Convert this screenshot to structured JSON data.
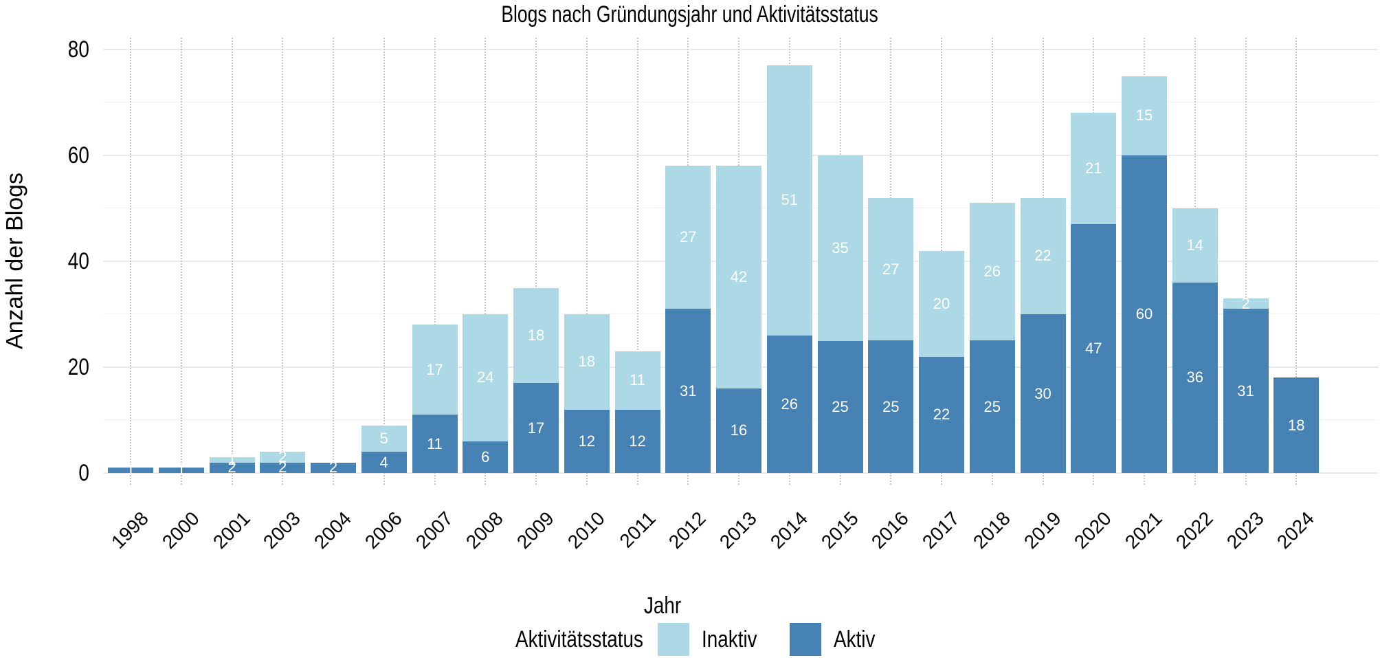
{
  "chart_data": {
    "type": "bar",
    "stacked": true,
    "title": "Blogs nach Gründungsjahr und Aktivitätsstatus",
    "xlabel": "Jahr",
    "ylabel": "Anzahl der Blogs",
    "ylim": [
      0,
      80
    ],
    "yticks": [
      0,
      20,
      40,
      60,
      80
    ],
    "grid": true,
    "legend": {
      "title": "Aktivitätsstatus",
      "position": "bottom",
      "entries": [
        "Inaktiv",
        "Aktiv"
      ]
    },
    "categories": [
      "1998",
      "2000",
      "2001",
      "2003",
      "2004",
      "2006",
      "2007",
      "2008",
      "2009",
      "2010",
      "2011",
      "2012",
      "2013",
      "2014",
      "2015",
      "2016",
      "2017",
      "2018",
      "2019",
      "2020",
      "2021",
      "2022",
      "2023",
      "2024"
    ],
    "series": [
      {
        "name": "Aktiv",
        "color": "#4682B4",
        "values": [
          1,
          1,
          2,
          2,
          2,
          4,
          11,
          6,
          17,
          12,
          12,
          31,
          16,
          26,
          25,
          25,
          22,
          25,
          30,
          47,
          60,
          36,
          31,
          18
        ]
      },
      {
        "name": "Inaktiv",
        "color": "#ADD8E6",
        "values": [
          0,
          0,
          1,
          2,
          0,
          5,
          17,
          24,
          18,
          18,
          11,
          27,
          42,
          51,
          35,
          27,
          20,
          26,
          22,
          21,
          15,
          14,
          2,
          0
        ]
      }
    ]
  },
  "labels": {
    "title": "Blogs nach Gründungsjahr und Aktivitätsstatus",
    "ylabel": "Anzahl der Blogs",
    "xlabel": "Jahr",
    "legend_title": "Aktivitätsstatus",
    "legend_inaktiv": "Inaktiv",
    "legend_aktiv": "Aktiv"
  },
  "colors": {
    "aktiv": "#4682B4",
    "inaktiv": "#ADD8E6"
  }
}
